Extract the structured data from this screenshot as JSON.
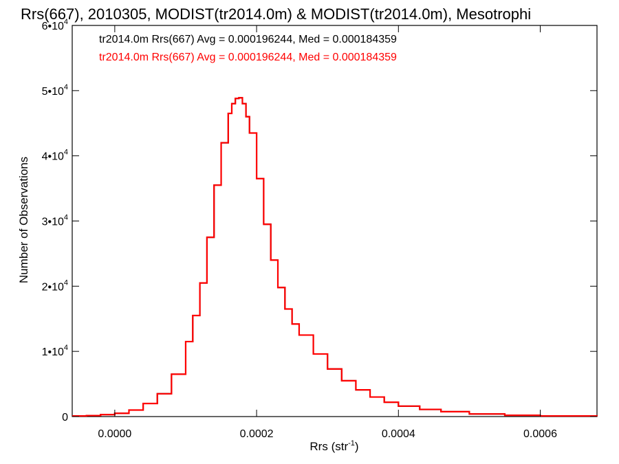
{
  "chart_data": {
    "type": "line",
    "title": "Rrs(667), 2010305, MODIST(tr2014.0m) & MODIST(tr2014.0m), Mesotrophi",
    "xlabel": {
      "base": "Rrs (str",
      "sup": "-1",
      "close": ")"
    },
    "ylabel": "Number of Observations",
    "xlim": [
      -6e-05,
      0.00068
    ],
    "ylim": [
      0,
      60000
    ],
    "xticks": [
      {
        "value": 0.0,
        "label": "0.0000"
      },
      {
        "value": 0.0002,
        "label": "0.0002"
      },
      {
        "value": 0.0004,
        "label": "0.0004"
      },
      {
        "value": 0.0006,
        "label": "0.0006"
      }
    ],
    "yticks": [
      {
        "value": 0,
        "base": "0",
        "sup": ""
      },
      {
        "value": 10000,
        "base": "1•10",
        "sup": "4"
      },
      {
        "value": 20000,
        "base": "2•10",
        "sup": "4"
      },
      {
        "value": 30000,
        "base": "3•10",
        "sup": "4"
      },
      {
        "value": 40000,
        "base": "4•10",
        "sup": "4"
      },
      {
        "value": 50000,
        "base": "5•10",
        "sup": "4"
      },
      {
        "value": 60000,
        "base": "6•10",
        "sup": "4"
      }
    ],
    "grid": false,
    "legend_position": "top-left",
    "legend": [
      {
        "text": "tr2014.0m Rrs(667) Avg = 0.000196244, Med = 0.000184359",
        "color": "#000000"
      },
      {
        "text": "tr2014.0m Rrs(667) Avg = 0.000196244, Med = 0.000184359",
        "color": "#ff0000"
      }
    ],
    "series": [
      {
        "color": "#000000",
        "x": [
          -6e-05,
          -4e-05,
          -2e-05,
          0.0,
          2e-05,
          4e-05,
          6e-05,
          8e-05,
          0.0001,
          0.00011,
          0.00012,
          0.00013,
          0.00014,
          0.00015,
          0.00016,
          0.000165,
          0.00017,
          0.000175,
          0.00018,
          0.000185,
          0.00019,
          0.0002,
          0.00021,
          0.00022,
          0.00023,
          0.00024,
          0.00025,
          0.00026,
          0.00028,
          0.0003,
          0.00032,
          0.00034,
          0.00036,
          0.00038,
          0.0004,
          0.00043,
          0.00046,
          0.0005,
          0.00055,
          0.0006,
          0.00068
        ],
        "values": [
          100,
          150,
          300,
          500,
          1000,
          2000,
          3500,
          6500,
          11500,
          15500,
          20500,
          27500,
          35500,
          42000,
          46500,
          48000,
          48800,
          48900,
          48000,
          46000,
          43500,
          36500,
          29500,
          24000,
          19800,
          16500,
          14200,
          12500,
          9600,
          7300,
          5500,
          4100,
          3000,
          2200,
          1600,
          1100,
          750,
          400,
          200,
          100,
          50
        ]
      },
      {
        "color": "#ff0000",
        "x": [
          -6e-05,
          -4e-05,
          -2e-05,
          0.0,
          2e-05,
          4e-05,
          6e-05,
          8e-05,
          0.0001,
          0.00011,
          0.00012,
          0.00013,
          0.00014,
          0.00015,
          0.00016,
          0.000165,
          0.00017,
          0.000175,
          0.00018,
          0.000185,
          0.00019,
          0.0002,
          0.00021,
          0.00022,
          0.00023,
          0.00024,
          0.00025,
          0.00026,
          0.00028,
          0.0003,
          0.00032,
          0.00034,
          0.00036,
          0.00038,
          0.0004,
          0.00043,
          0.00046,
          0.0005,
          0.00055,
          0.0006,
          0.00068
        ],
        "values": [
          100,
          150,
          300,
          500,
          1000,
          2000,
          3500,
          6500,
          11500,
          15500,
          20500,
          27500,
          35500,
          42000,
          46500,
          48000,
          48800,
          48900,
          48000,
          46000,
          43500,
          36500,
          29500,
          24000,
          19800,
          16500,
          14200,
          12500,
          9600,
          7300,
          5500,
          4100,
          3000,
          2200,
          1600,
          1100,
          750,
          400,
          200,
          100,
          50
        ]
      }
    ]
  }
}
